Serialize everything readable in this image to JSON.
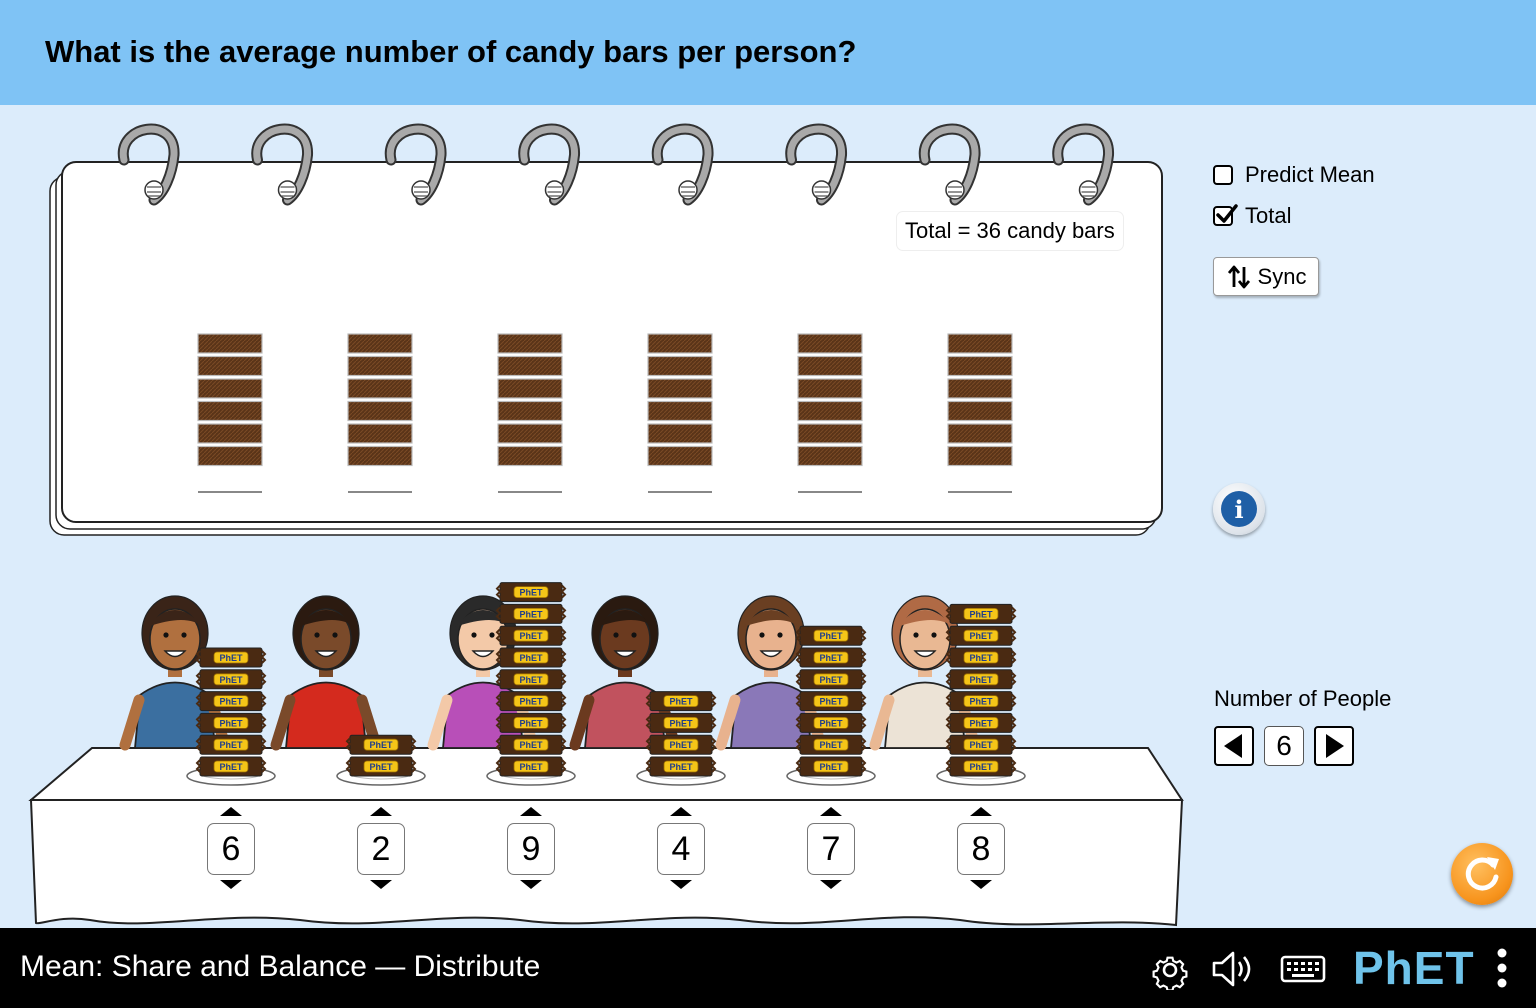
{
  "header": {
    "question": "What is the average number of candy bars per person?"
  },
  "notebook": {
    "total_label": "Total = 36 candy bars",
    "columns": [
      {
        "person": 1,
        "stacked_bars": 6
      },
      {
        "person": 2,
        "stacked_bars": 6
      },
      {
        "person": 3,
        "stacked_bars": 6
      },
      {
        "person": 4,
        "stacked_bars": 6
      },
      {
        "person": 5,
        "stacked_bars": 6
      },
      {
        "person": 6,
        "stacked_bars": 6
      }
    ]
  },
  "controls": {
    "predict_mean": {
      "label": "Predict Mean",
      "checked": false
    },
    "total": {
      "label": "Total",
      "checked": true
    },
    "sync_label": "Sync",
    "number_of_people_label": "Number of People",
    "number_of_people_value": "6"
  },
  "table": {
    "candy_brand": "PhET",
    "people": [
      {
        "name": "person-1",
        "count": "6",
        "shirt": "#3b6fa0",
        "skin": "#b0703f",
        "hair": "#3a2418"
      },
      {
        "name": "person-2",
        "count": "2",
        "shirt": "#d42a1e",
        "skin": "#7a4a2a",
        "hair": "#2b1a10"
      },
      {
        "name": "person-3",
        "count": "9",
        "shirt": "#b84fb8",
        "skin": "#f3c9a8",
        "hair": "#2a2a2a"
      },
      {
        "name": "person-4",
        "count": "4",
        "shirt": "#c1525e",
        "skin": "#6b3a1f",
        "hair": "#2a1a10"
      },
      {
        "name": "person-5",
        "count": "7",
        "shirt": "#8a78b8",
        "skin": "#e8b28e",
        "hair": "#6a3f22"
      },
      {
        "name": "person-6",
        "count": "8",
        "shirt": "#ece3d6",
        "skin": "#e9b893",
        "hair": "#b06a45"
      }
    ]
  },
  "footer": {
    "sim_title": "Mean: Share and Balance — Distribute",
    "logo_text": "PhET",
    "icons": [
      "settings-icon",
      "audio-icon",
      "keyboard-icon",
      "more-options-icon"
    ]
  }
}
